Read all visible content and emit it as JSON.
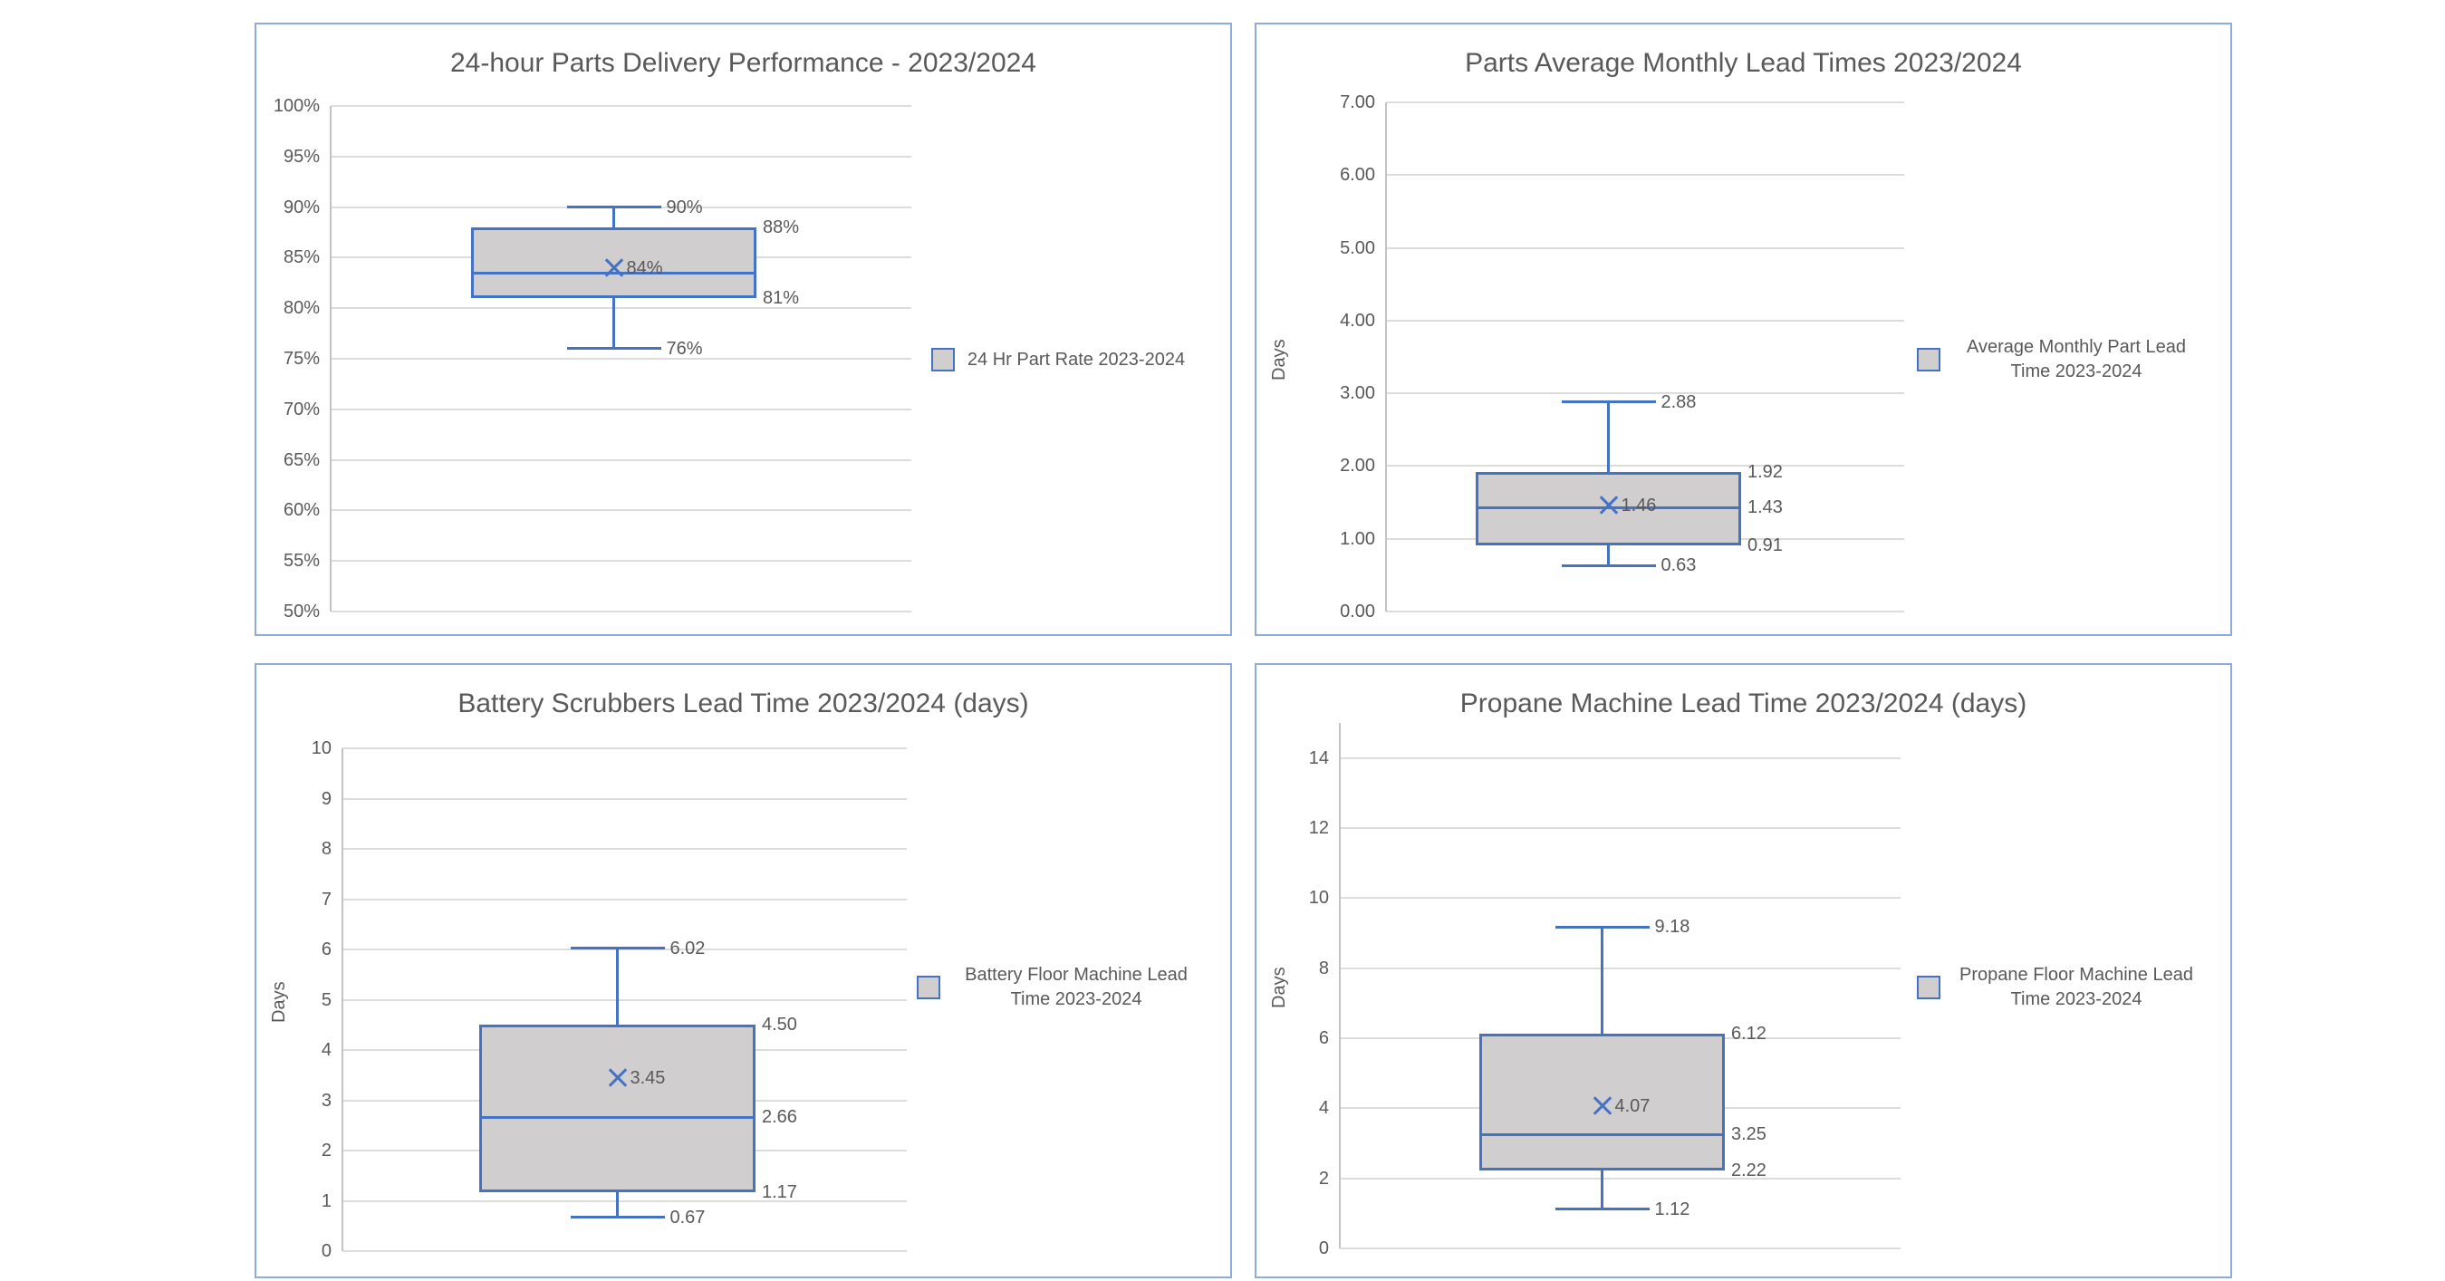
{
  "colors": {
    "accent_blue": "#4472C4",
    "box_fill": "#D0CECE",
    "gridline": "#DCDCDC",
    "axis_line": "#C3C3C3",
    "text": "#595959",
    "panel_border": "#8FAADC"
  },
  "chart_data": [
    {
      "type": "boxplot",
      "title": "24-hour Parts Delivery Performance - 2023/2024",
      "ylabel": "",
      "ylim": [
        0.5,
        1.0
      ],
      "grid": true,
      "legend_position": "right",
      "legend": "24 Hr Part Rate 2023-2024",
      "y_ticks": [
        {
          "label": "100%",
          "v": 1.0
        },
        {
          "label": "95%",
          "v": 0.95
        },
        {
          "label": "90%",
          "v": 0.9
        },
        {
          "label": "85%",
          "v": 0.85
        },
        {
          "label": "80%",
          "v": 0.8
        },
        {
          "label": "75%",
          "v": 0.75
        },
        {
          "label": "70%",
          "v": 0.7
        },
        {
          "label": "65%",
          "v": 0.65
        },
        {
          "label": "60%",
          "v": 0.6
        },
        {
          "label": "55%",
          "v": 0.55
        },
        {
          "label": "50%",
          "v": 0.5
        }
      ],
      "box": {
        "whisker_high": {
          "v": 0.9,
          "label": "90%"
        },
        "q3": {
          "v": 0.88,
          "label": "88%"
        },
        "mean": {
          "v": 0.84,
          "label": "84%"
        },
        "median": {
          "v": 0.835,
          "label": ""
        },
        "q1": {
          "v": 0.81,
          "label": "81%"
        },
        "whisker_low": {
          "v": 0.76,
          "label": "76%"
        }
      }
    },
    {
      "type": "boxplot",
      "title": "Parts Average Monthly Lead Times 2023/2024",
      "ylabel": "Days",
      "ylim": [
        0,
        7
      ],
      "grid": true,
      "legend_position": "right",
      "legend": "Average Monthly Part Lead Time 2023-2024",
      "y_ticks": [
        {
          "label": "7.00",
          "v": 7
        },
        {
          "label": "6.00",
          "v": 6
        },
        {
          "label": "5.00",
          "v": 5
        },
        {
          "label": "4.00",
          "v": 4
        },
        {
          "label": "3.00",
          "v": 3
        },
        {
          "label": "2.00",
          "v": 2
        },
        {
          "label": "1.00",
          "v": 1
        },
        {
          "label": "0.00",
          "v": 0
        }
      ],
      "box": {
        "whisker_high": {
          "v": 2.88,
          "label": "2.88"
        },
        "q3": {
          "v": 1.92,
          "label": "1.92"
        },
        "mean": {
          "v": 1.46,
          "label": "1.46"
        },
        "median": {
          "v": 1.43,
          "label": "1.43"
        },
        "q1": {
          "v": 0.91,
          "label": "0.91"
        },
        "whisker_low": {
          "v": 0.63,
          "label": "0.63"
        }
      }
    },
    {
      "type": "boxplot",
      "title": "Battery Scrubbers Lead Time 2023/2024 (days)",
      "ylabel": "Days",
      "ylim": [
        0,
        10
      ],
      "grid": true,
      "legend_position": "right",
      "legend": "Battery Floor Machine Lead Time 2023-2024",
      "y_ticks": [
        {
          "label": "10",
          "v": 10
        },
        {
          "label": "9",
          "v": 9
        },
        {
          "label": "8",
          "v": 8
        },
        {
          "label": "7",
          "v": 7
        },
        {
          "label": "6",
          "v": 6
        },
        {
          "label": "5",
          "v": 5
        },
        {
          "label": "4",
          "v": 4
        },
        {
          "label": "3",
          "v": 3
        },
        {
          "label": "2",
          "v": 2
        },
        {
          "label": "1",
          "v": 1
        },
        {
          "label": "0",
          "v": 0
        }
      ],
      "box": {
        "whisker_high": {
          "v": 6.02,
          "label": "6.02"
        },
        "q3": {
          "v": 4.5,
          "label": "4.50"
        },
        "mean": {
          "v": 3.45,
          "label": "3.45"
        },
        "median": {
          "v": 2.66,
          "label": "2.66"
        },
        "q1": {
          "v": 1.17,
          "label": "1.17"
        },
        "whisker_low": {
          "v": 0.67,
          "label": "0.67"
        }
      }
    },
    {
      "type": "boxplot",
      "title": "Propane Machine Lead Time 2023/2024 (days)",
      "ylabel": "Days",
      "ylim": [
        0,
        15
      ],
      "grid": true,
      "legend_position": "right",
      "legend": "Propane Floor Machine Lead Time 2023-2024",
      "y_ticks": [
        {
          "label": "14",
          "v": 14
        },
        {
          "label": "12",
          "v": 12
        },
        {
          "label": "10",
          "v": 10
        },
        {
          "label": "8",
          "v": 8
        },
        {
          "label": "6",
          "v": 6
        },
        {
          "label": "4",
          "v": 4
        },
        {
          "label": "2",
          "v": 2
        },
        {
          "label": "0",
          "v": 0
        }
      ],
      "box": {
        "whisker_high": {
          "v": 9.18,
          "label": "9.18"
        },
        "q3": {
          "v": 6.12,
          "label": "6.12"
        },
        "mean": {
          "v": 4.07,
          "label": "4.07"
        },
        "median": {
          "v": 3.25,
          "label": "3.25"
        },
        "q1": {
          "v": 2.22,
          "label": "2.22"
        },
        "whisker_low": {
          "v": 1.12,
          "label": "1.12"
        }
      }
    }
  ]
}
